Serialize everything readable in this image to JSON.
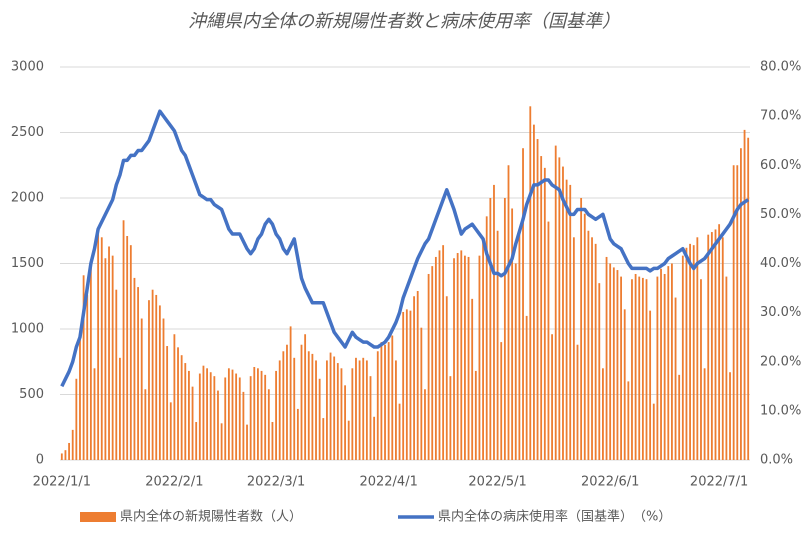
{
  "chart_data": {
    "type": "bar",
    "title": "沖縄県内全体の新規陽性者数と病床使用率（国基準）",
    "categories": [
      "2022/1/1",
      null,
      null,
      null,
      null,
      null,
      null,
      null,
      null,
      null,
      null,
      null,
      null,
      null,
      null,
      null,
      null,
      null,
      null,
      null,
      null,
      null,
      null,
      null,
      null,
      null,
      null,
      null,
      null,
      null,
      null,
      "2022/2/1",
      null,
      null,
      null,
      null,
      null,
      null,
      null,
      null,
      null,
      null,
      null,
      null,
      null,
      null,
      null,
      null,
      null,
      null,
      null,
      null,
      null,
      null,
      null,
      null,
      null,
      null,
      null,
      "2022/3/1",
      null,
      null,
      null,
      null,
      null,
      null,
      null,
      null,
      null,
      null,
      null,
      null,
      null,
      null,
      null,
      null,
      null,
      null,
      null,
      null,
      null,
      null,
      null,
      null,
      null,
      null,
      null,
      null,
      null,
      null,
      "2022/4/1",
      null,
      null,
      null,
      null,
      null,
      null,
      null,
      null,
      null,
      null,
      null,
      null,
      null,
      null,
      null,
      null,
      null,
      null,
      null,
      null,
      null,
      null,
      null,
      null,
      null,
      null,
      null,
      null,
      null,
      "2022/5/1",
      null,
      null,
      null,
      null,
      null,
      null,
      null,
      null,
      null,
      null,
      null,
      null,
      null,
      null,
      null,
      null,
      null,
      null,
      null,
      null,
      null,
      null,
      null,
      null,
      null,
      null,
      null,
      null,
      null,
      null,
      "2022/6/1",
      null,
      null,
      null,
      null,
      null,
      null,
      null,
      null,
      null,
      null,
      null,
      null,
      null,
      null,
      null,
      null,
      null,
      null,
      null,
      null,
      null,
      null,
      null,
      null,
      null,
      null,
      null,
      null,
      null,
      "2022/7/1",
      null,
      null,
      null,
      null,
      null,
      null,
      null,
      null
    ],
    "series": [
      {
        "name": "県内全体の新規陽性者数（人）",
        "type": "bar",
        "color": "#ed7d31",
        "values": [
          50,
          75,
          130,
          230,
          620,
          980,
          1410,
          1260,
          1520,
          700,
          1750,
          1700,
          1540,
          1630,
          1560,
          1300,
          780,
          1830,
          1710,
          1640,
          1390,
          1320,
          1080,
          540,
          1220,
          1300,
          1260,
          1180,
          1080,
          870,
          440,
          960,
          860,
          800,
          740,
          680,
          560,
          290,
          660,
          720,
          700,
          670,
          640,
          530,
          280,
          630,
          700,
          690,
          660,
          630,
          520,
          270,
          640,
          710,
          700,
          680,
          650,
          540,
          290,
          680,
          760,
          830,
          880,
          1020,
          780,
          390,
          880,
          960,
          830,
          810,
          760,
          620,
          320,
          760,
          820,
          790,
          740,
          700,
          570,
          300,
          700,
          780,
          760,
          780,
          760,
          640,
          330,
          830,
          900,
          880,
          900,
          950,
          760,
          430,
          1130,
          1150,
          1140,
          1250,
          1290,
          1010,
          540,
          1420,
          1480,
          1550,
          1600,
          1640,
          1250,
          640,
          1540,
          1580,
          1600,
          1560,
          1550,
          1230,
          680,
          1560,
          1700,
          1860,
          2000,
          2100,
          1750,
          900,
          2000,
          2250,
          1920,
          1500,
          1720,
          2380,
          1100,
          2700,
          2560,
          2450,
          2320,
          2230,
          1820,
          960,
          2400,
          2310,
          2240,
          2140,
          2100,
          1700,
          880,
          2000,
          1880,
          1750,
          1700,
          1650,
          1350,
          700,
          1550,
          1500,
          1470,
          1450,
          1400,
          1150,
          600,
          1380,
          1420,
          1400,
          1390,
          1380,
          1140,
          430,
          1400,
          1460,
          1420,
          1480,
          1500,
          1240,
          650,
          1560,
          1620,
          1650,
          1640,
          1700,
          1380,
          700,
          1720,
          1740,
          1760,
          1800,
          1700,
          1400,
          670,
          2250,
          2250,
          2380,
          2520,
          2460
        ]
      },
      {
        "name": "県内全体の病床使用率（国基準）　（%）",
        "type": "line",
        "axis": "y2",
        "color": "#4472c4",
        "values": [
          15,
          16.5,
          18,
          20,
          23,
          25,
          30,
          35,
          40,
          43,
          47,
          48.5,
          50,
          51.5,
          53,
          56,
          58,
          61,
          61,
          62,
          62,
          63,
          63,
          64,
          65,
          67,
          69,
          71,
          70,
          69,
          68,
          67,
          65,
          63,
          62,
          60,
          58,
          56,
          54,
          53.5,
          53,
          53,
          52,
          51.5,
          51,
          49,
          47,
          46,
          46,
          46,
          44.5,
          43,
          42,
          43,
          45,
          46,
          48,
          49,
          48,
          46,
          45,
          43,
          42,
          43.5,
          45,
          41,
          37,
          35,
          33.5,
          32,
          32,
          32,
          32,
          30,
          28,
          26,
          25,
          24,
          23,
          24.5,
          26,
          25,
          24.5,
          24,
          24,
          23.5,
          23,
          23,
          23.5,
          24,
          25,
          26.5,
          28,
          30,
          33,
          35,
          37,
          39,
          41,
          42.5,
          44,
          45,
          47,
          49,
          51,
          53,
          55,
          53,
          51,
          48.5,
          46,
          47,
          47.5,
          48,
          47,
          46,
          45,
          42,
          40,
          38,
          38,
          37.5,
          38,
          39.5,
          41,
          44,
          46.5,
          49,
          52,
          54,
          56,
          56,
          56.5,
          57,
          57,
          56,
          55.5,
          55,
          53,
          51.5,
          50,
          50,
          51,
          51,
          51,
          50,
          49.5,
          49,
          49.5,
          50,
          47.5,
          45,
          44,
          43.5,
          43,
          41.5,
          40,
          39,
          39,
          39,
          39,
          39,
          38.5,
          39,
          39,
          39.5,
          40,
          41,
          41.5,
          42,
          42.5,
          43,
          41.5,
          40,
          39,
          40,
          40.5,
          41,
          42,
          43,
          44,
          45,
          46,
          47,
          48,
          49.5,
          51,
          52,
          52.5,
          53
        ]
      }
    ],
    "ylim": [
      0,
      3000
    ],
    "yticks": [
      0,
      500,
      1000,
      1500,
      2000,
      2500,
      3000
    ],
    "y2lim": [
      0,
      80
    ],
    "y2ticks": [
      {
        "value": 0,
        "label": "0.0%"
      },
      {
        "value": 10,
        "label": "10.0%"
      },
      {
        "value": 20,
        "label": "20.0%"
      },
      {
        "value": 30,
        "label": "30.0%"
      },
      {
        "value": 40,
        "label": "40.0%"
      },
      {
        "value": 50,
        "label": "50.0%"
      },
      {
        "value": 60,
        "label": "60.0%"
      },
      {
        "value": 70,
        "label": "70.0%"
      },
      {
        "value": 80,
        "label": "80.0%"
      }
    ],
    "grid": true,
    "legend": "bottom"
  }
}
